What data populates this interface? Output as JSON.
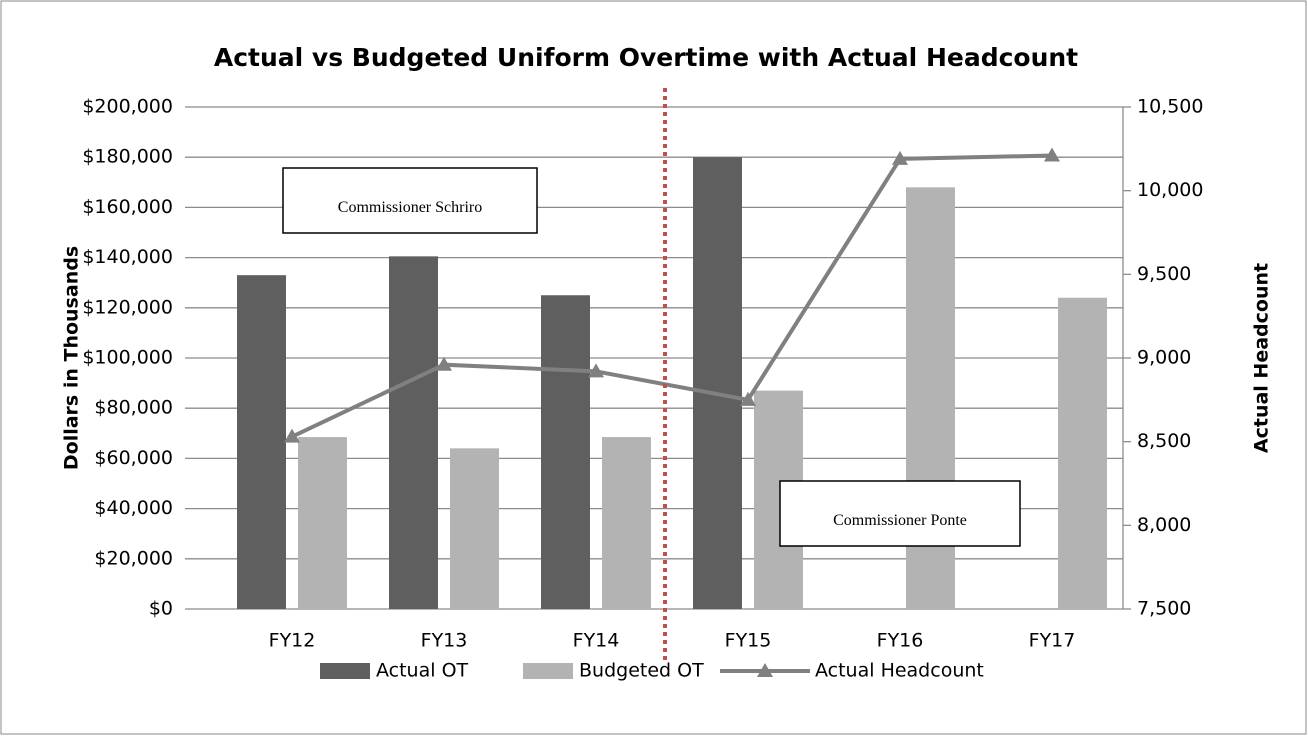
{
  "chart_data": {
    "type": "bar",
    "title": "Actual vs Budgeted Uniform Overtime with Actual Headcount",
    "y_label": "Dollars in Thousands",
    "y2_label": "Actual Headcount",
    "categories": [
      "FY12",
      "FY13",
      "FY14",
      "FY15",
      "FY16",
      "FY17"
    ],
    "series": [
      {
        "name": "Actual OT",
        "type": "bar",
        "color": "#5f5f5f",
        "values": [
          133000,
          140500,
          125000,
          180000,
          null,
          null
        ]
      },
      {
        "name": "Budgeted OT",
        "type": "bar",
        "color": "#b3b3b3",
        "values": [
          68500,
          64000,
          68500,
          87000,
          168000,
          124000
        ]
      },
      {
        "name": "Actual Headcount",
        "type": "line",
        "axis": "y2",
        "color": "#808080",
        "values": [
          8530,
          8960,
          8920,
          8750,
          10190,
          10210
        ]
      }
    ],
    "ylim": [
      0,
      200000
    ],
    "yticks": [
      {
        "value": 0,
        "label": "$0"
      },
      {
        "value": 20000,
        "label": "$20,000"
      },
      {
        "value": 40000,
        "label": "$40,000"
      },
      {
        "value": 60000,
        "label": "$60,000"
      },
      {
        "value": 80000,
        "label": "$80,000"
      },
      {
        "value": 100000,
        "label": "$100,000"
      },
      {
        "value": 120000,
        "label": "$120,000"
      },
      {
        "value": 140000,
        "label": "$140,000"
      },
      {
        "value": 160000,
        "label": "$160,000"
      },
      {
        "value": 180000,
        "label": "$180,000"
      },
      {
        "value": 200000,
        "label": "$200,000"
      }
    ],
    "y2lim": [
      7500,
      10500
    ],
    "y2ticks": [
      {
        "value": 7500,
        "label": "7,500"
      },
      {
        "value": 8000,
        "label": "8,000"
      },
      {
        "value": 8500,
        "label": "8,500"
      },
      {
        "value": 9000,
        "label": "9,000"
      },
      {
        "value": 9500,
        "label": "9,500"
      },
      {
        "value": 10000,
        "label": "10,000"
      },
      {
        "value": 10500,
        "label": "10,500"
      }
    ],
    "annotations": [
      "Commissioner Schriro",
      "Commissioner Ponte"
    ],
    "grid": true,
    "legend": "bottom"
  }
}
